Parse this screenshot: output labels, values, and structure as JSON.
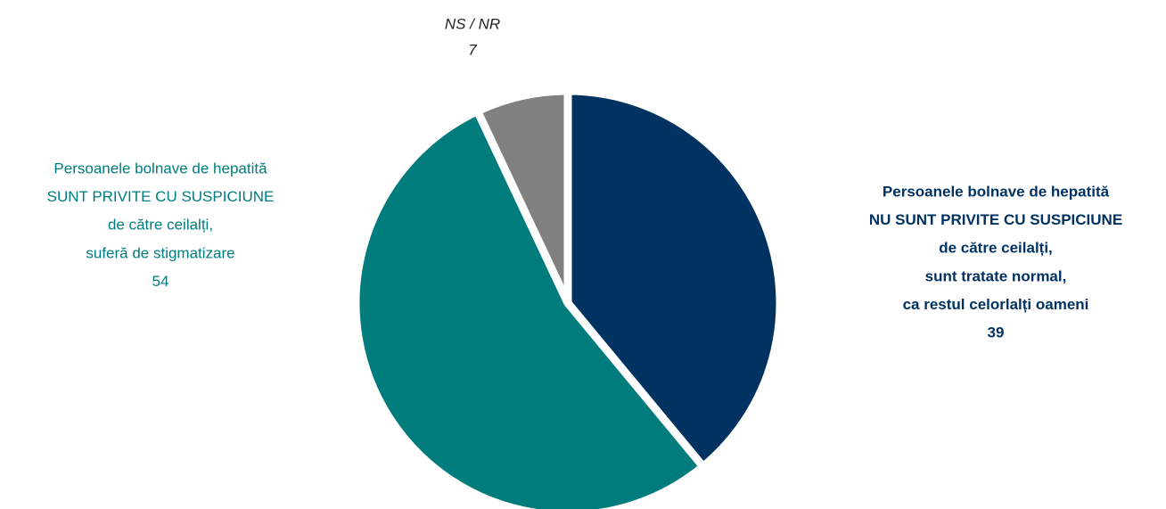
{
  "chart_data": {
    "type": "pie",
    "categories": [
      [
        "Persoanele bolnave de hepatită",
        "NU SUNT PRIVITE CU SUSPICIUNE",
        "de către ceilalți,",
        "sunt tratate normal,",
        "ca restul celorlalți oameni"
      ],
      [
        "Persoanele bolnave de hepatită",
        "SUNT PRIVITE CU SUSPICIUNE",
        "de către ceilalți,",
        "suferă de stigmatizare"
      ],
      [
        "NS / NR"
      ]
    ],
    "values": [
      39,
      54,
      7
    ],
    "colors": [
      "#003262",
      "#007c7c",
      "#808080"
    ]
  }
}
